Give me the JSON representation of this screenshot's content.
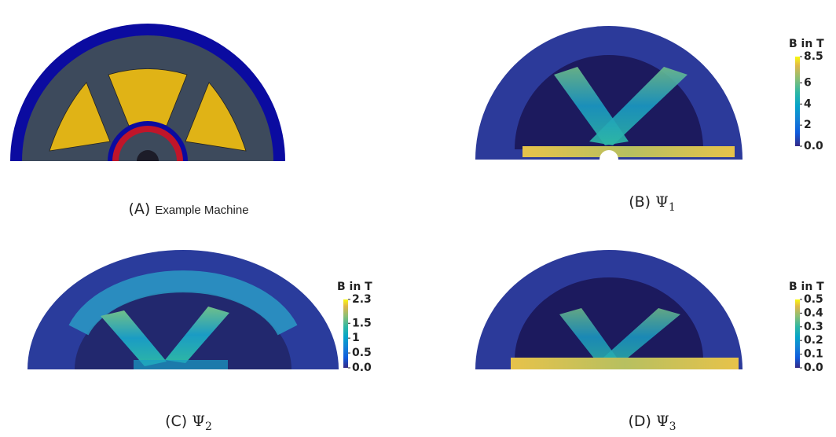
{
  "panels": [
    {
      "label": "(A)",
      "caption": "Example Machine"
    },
    {
      "label": "(B)",
      "symbol": "Ψ",
      "subscript": "1",
      "colorbar": {
        "title": "B in T",
        "lim": [
          0,
          8.5
        ],
        "ticks": [
          {
            "value": 0,
            "label": "0.0"
          },
          2,
          4,
          6,
          8.5
        ]
      }
    },
    {
      "label": "(C)",
      "symbol": "Ψ",
      "subscript": "2",
      "colorbar": {
        "title": "B in T",
        "lim": [
          0,
          2.3
        ],
        "ticks": [
          {
            "value": 0,
            "label": "0.0"
          },
          0.5,
          1,
          1.5,
          2.3
        ]
      }
    },
    {
      "label": "(D)",
      "symbol": "Ψ",
      "subscript": "3",
      "colorbar": {
        "title": "B in T",
        "lim": [
          0,
          0.5
        ],
        "ticks": [
          {
            "value": 0,
            "label": "0.0"
          },
          0.1,
          0.2,
          0.3,
          0.4,
          0.5
        ]
      }
    }
  ]
}
